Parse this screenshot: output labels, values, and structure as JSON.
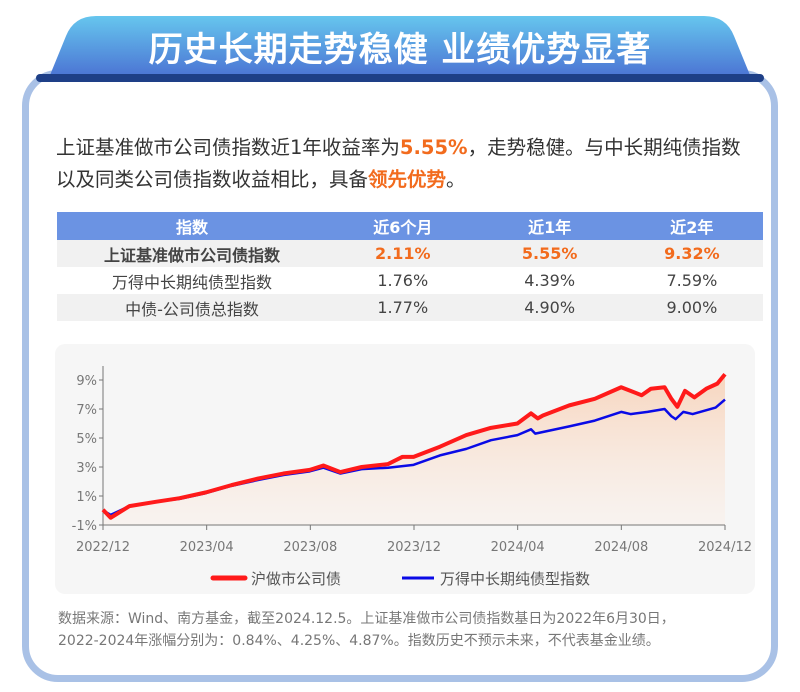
{
  "header": {
    "title": "历史长期走势稳健 业绩优势显著"
  },
  "intro": {
    "p1": "上证基准做市公司债指数近1年收益率为",
    "h1": "5.55%",
    "p2": "，走势稳健。与中长期纯债指数以及同类公司债指数收益相比，具备",
    "h2": "领先优势",
    "p3": "。"
  },
  "table": {
    "headers": [
      "指数",
      "近6个月",
      "近1年",
      "近2年"
    ],
    "rows": [
      {
        "name": "上证基准做市公司债指数",
        "v6m": "2.11%",
        "v1y": "5.55%",
        "v2y": "9.32%"
      },
      {
        "name": "万得中长期纯债型指数",
        "v6m": "1.76%",
        "v1y": "4.39%",
        "v2y": "7.59%"
      },
      {
        "name": "中债-公司债总指数",
        "v6m": "1.77%",
        "v1y": "4.90%",
        "v2y": "9.00%"
      }
    ]
  },
  "chart_data": {
    "type": "line",
    "xlabel": "",
    "ylabel": "",
    "ylim": [
      -1,
      10
    ],
    "xlim": [
      "2022-12-01",
      "2024-12-01"
    ],
    "x_ticks": [
      "2022/12",
      "2023/04",
      "2023/08",
      "2023/12",
      "2024/04",
      "2024/08",
      "2024/12"
    ],
    "y_ticks": [
      "-1%",
      "1%",
      "3%",
      "5%",
      "7%",
      "9%"
    ],
    "y_tick_values": [
      -1,
      1,
      3,
      5,
      7,
      9
    ],
    "legend_position": "bottom",
    "series": [
      {
        "name": "沪做市公司债",
        "color": "#ff1a1a",
        "area_fill": true,
        "points": [
          [
            "2022-12-01",
            0.05
          ],
          [
            "2022-12-10",
            -0.5
          ],
          [
            "2023-01-01",
            0.3
          ],
          [
            "2023-02-01",
            0.6
          ],
          [
            "2023-03-01",
            0.85
          ],
          [
            "2023-04-01",
            1.25
          ],
          [
            "2023-05-01",
            1.75
          ],
          [
            "2023-06-01",
            2.2
          ],
          [
            "2023-07-01",
            2.55
          ],
          [
            "2023-08-01",
            2.8
          ],
          [
            "2023-08-17",
            3.1
          ],
          [
            "2023-09-06",
            2.65
          ],
          [
            "2023-10-01",
            3.0
          ],
          [
            "2023-11-01",
            3.2
          ],
          [
            "2023-11-18",
            3.7
          ],
          [
            "2023-12-01",
            3.7
          ],
          [
            "2024-01-01",
            4.4
          ],
          [
            "2024-02-01",
            5.2
          ],
          [
            "2024-03-01",
            5.7
          ],
          [
            "2024-04-01",
            6.0
          ],
          [
            "2024-04-17",
            6.7
          ],
          [
            "2024-04-25",
            6.35
          ],
          [
            "2024-05-01",
            6.55
          ],
          [
            "2024-06-01",
            7.25
          ],
          [
            "2024-07-01",
            7.7
          ],
          [
            "2024-08-01",
            8.5
          ],
          [
            "2024-08-25",
            7.95
          ],
          [
            "2024-09-05",
            8.4
          ],
          [
            "2024-09-21",
            8.5
          ],
          [
            "2024-09-29",
            7.7
          ],
          [
            "2024-10-06",
            7.15
          ],
          [
            "2024-10-15",
            8.25
          ],
          [
            "2024-10-26",
            7.8
          ],
          [
            "2024-11-09",
            8.4
          ],
          [
            "2024-11-22",
            8.75
          ],
          [
            "2024-12-01",
            9.4
          ]
        ]
      },
      {
        "name": "万得中长期纯债型指数",
        "color": "#0a0ae6",
        "points": [
          [
            "2022-12-01",
            0.0
          ],
          [
            "2022-12-10",
            -0.3
          ],
          [
            "2023-01-01",
            0.3
          ],
          [
            "2023-02-01",
            0.6
          ],
          [
            "2023-03-01",
            0.8
          ],
          [
            "2023-04-01",
            1.2
          ],
          [
            "2023-05-01",
            1.7
          ],
          [
            "2023-06-01",
            2.1
          ],
          [
            "2023-07-01",
            2.45
          ],
          [
            "2023-08-01",
            2.7
          ],
          [
            "2023-08-17",
            2.95
          ],
          [
            "2023-09-06",
            2.55
          ],
          [
            "2023-10-01",
            2.85
          ],
          [
            "2023-11-01",
            2.95
          ],
          [
            "2023-12-01",
            3.15
          ],
          [
            "2024-01-01",
            3.8
          ],
          [
            "2024-02-01",
            4.25
          ],
          [
            "2024-03-01",
            4.85
          ],
          [
            "2024-04-01",
            5.2
          ],
          [
            "2024-04-17",
            5.6
          ],
          [
            "2024-04-22",
            5.3
          ],
          [
            "2024-06-01",
            5.8
          ],
          [
            "2024-07-01",
            6.2
          ],
          [
            "2024-08-01",
            6.8
          ],
          [
            "2024-08-12",
            6.65
          ],
          [
            "2024-09-01",
            6.8
          ],
          [
            "2024-09-21",
            7.0
          ],
          [
            "2024-09-29",
            6.5
          ],
          [
            "2024-10-04",
            6.3
          ],
          [
            "2024-10-13",
            6.8
          ],
          [
            "2024-10-24",
            6.65
          ],
          [
            "2024-11-20",
            7.1
          ],
          [
            "2024-12-01",
            7.65
          ]
        ]
      }
    ]
  },
  "note": {
    "line1": "数据来源：Wind、南方基金，截至2024.12.5。上证基准做市公司债指数基日为2022年6月30日，",
    "line2": "2022-2024年涨幅分别为：0.84%、4.25%、4.87%。指数历史不预示未来，不代表基金业绩。"
  }
}
